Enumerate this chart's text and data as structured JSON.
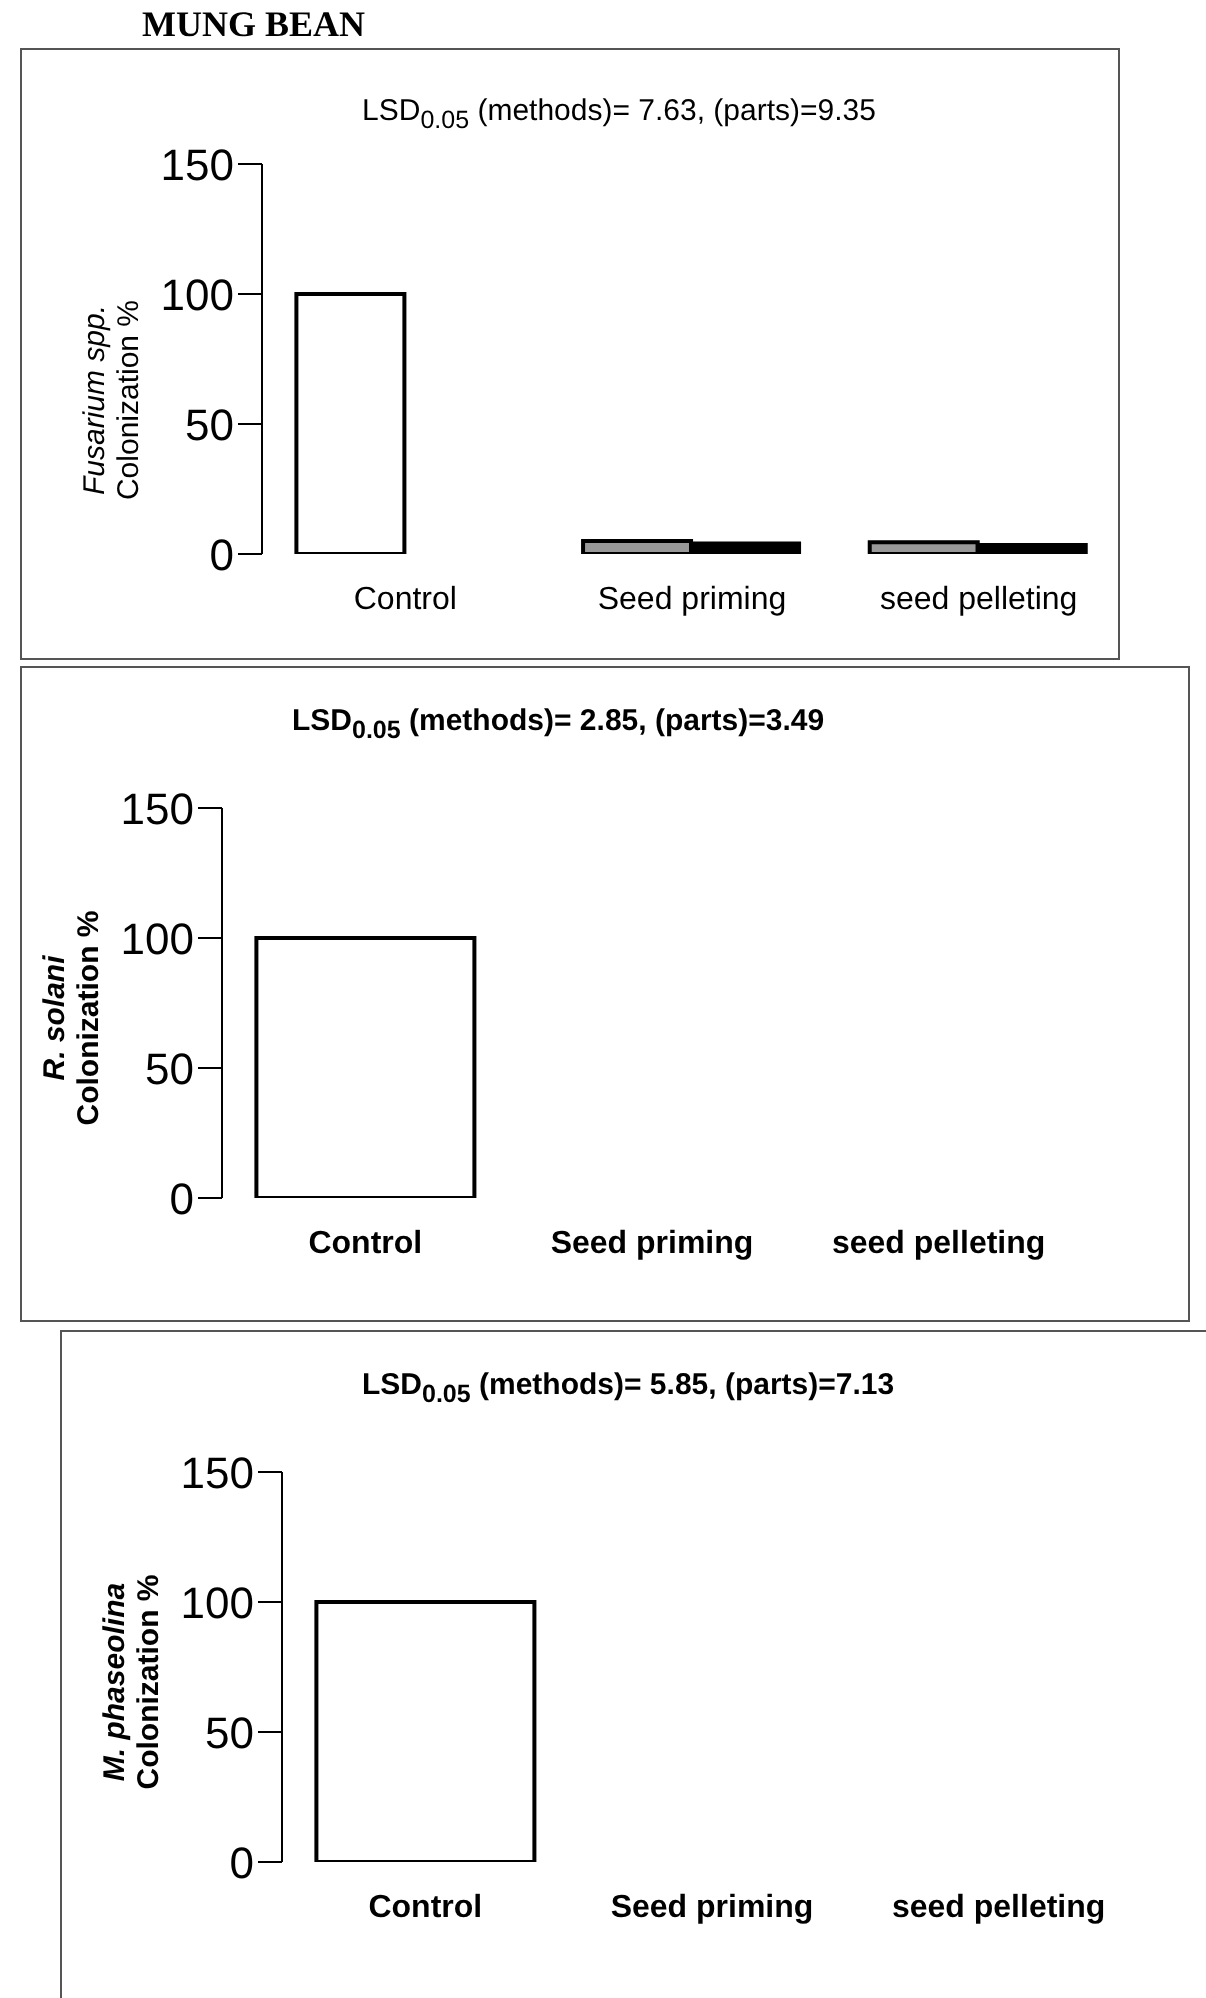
{
  "chart_data": [
    {
      "type": "bar",
      "title": "MUNG BEAN",
      "categories": [
        "Control",
        "Seed priming",
        "seed pelleting"
      ],
      "ylabel": "Fusarium spp.\nColonization %",
      "annotations": [
        "LSD$_{0.05}$ (methods)= 7.63, (parts)=9.35"
      ],
      "series": [
        {
          "colors": [
            "#ffffff",
            "#999999",
            "#999999"
          ],
          "values": [
            100,
            5,
            4.5
          ]
        },
        {
          "color": "#000000",
          "values": [
            null,
            4,
            3.5
          ]
        }
      ],
      "ylim": [
        0,
        150
      ],
      "yticks": [
        0,
        50,
        100,
        150
      ],
      "grid": false,
      "legend": false
    },
    {
      "type": "bar",
      "categories": [
        "Control",
        "Seed priming",
        "seed pelleting"
      ],
      "ylabel": "R. solani\nColonization %",
      "annotations": [
        "LSD$_{0.05}$ (methods)= 2.85, (parts)=3.49"
      ],
      "series": [
        {
          "color": "#ffffff",
          "values": [
            100,
            0,
            null
          ]
        }
      ],
      "ylim": [
        0,
        150
      ],
      "yticks": [
        0,
        50,
        100,
        150
      ],
      "grid": false,
      "legend": false
    },
    {
      "type": "bar",
      "categories": [
        "Control",
        "Seed priming",
        "seed pelleting"
      ],
      "ylabel": "M. phaseolina\nColonization %",
      "annotations": [
        "LSD$_{0.05}$ (methods)= 5.85, (parts)=7.13"
      ],
      "series": [
        {
          "color": "#ffffff",
          "values": [
            100,
            0,
            null
          ]
        }
      ],
      "ylim": [
        0,
        150
      ],
      "yticks": [
        0,
        50,
        100,
        150
      ],
      "grid": false,
      "legend": false
    }
  ]
}
